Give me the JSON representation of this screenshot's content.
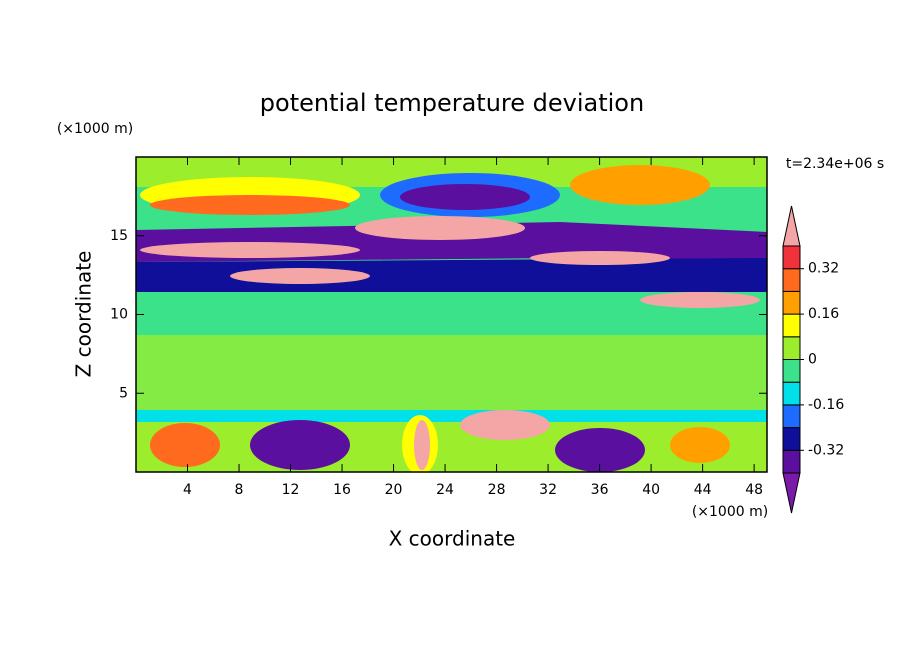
{
  "chart_data": {
    "type": "contour",
    "title": "potential temperature deviation",
    "xlabel": "X coordinate",
    "ylabel": "Z coordinate",
    "x_unit": "(×1000 m)",
    "y_unit": "(×1000 m)",
    "annotation": "t=2.34e+06 s",
    "xlim": [
      0,
      49
    ],
    "xticks": [
      4,
      8,
      12,
      16,
      20,
      24,
      28,
      32,
      36,
      40,
      44,
      48
    ],
    "ylim": [
      0,
      20
    ],
    "yticks": [
      5,
      10,
      15
    ],
    "colorbar": {
      "lim": [
        -0.4,
        0.4
      ],
      "ticks": [
        -0.32,
        -0.16,
        0,
        0.16,
        0.32
      ],
      "colors": [
        "#7a1aa8",
        "#5a0f9e",
        "#0f0f9a",
        "#1e6cff",
        "#00e0e8",
        "#3ce28a",
        "#9cee2c",
        "#ffff00",
        "#ffa000",
        "#ff6a1e",
        "#f2323a",
        "#f4a6a6"
      ]
    }
  }
}
